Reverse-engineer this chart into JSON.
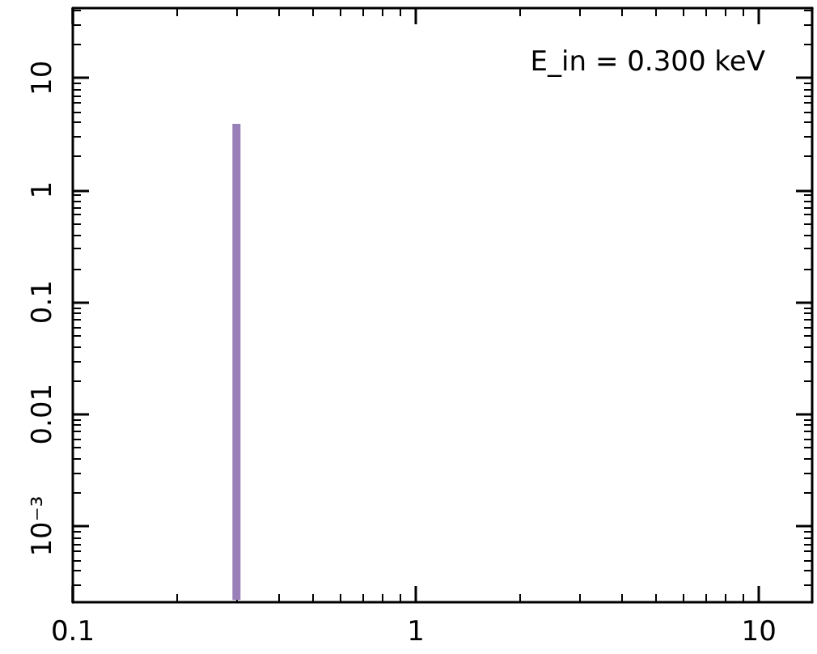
{
  "chart_data": {
    "type": "line",
    "x": [
      0.3,
      0.3
    ],
    "values": [
      0.00022,
      3.9
    ],
    "color": "#9a80b8",
    "xlim": [
      0.1,
      14.3
    ],
    "ylim": [
      0.00021,
      42
    ],
    "xticks": [
      0.1,
      1,
      10
    ],
    "yticks": [
      {
        "value": 0.001,
        "label": "10⁻³"
      },
      0.01,
      0.1,
      1,
      10
    ],
    "log": "xy",
    "grid": false,
    "annotations": [
      "E_in = 0.300 keV"
    ]
  }
}
